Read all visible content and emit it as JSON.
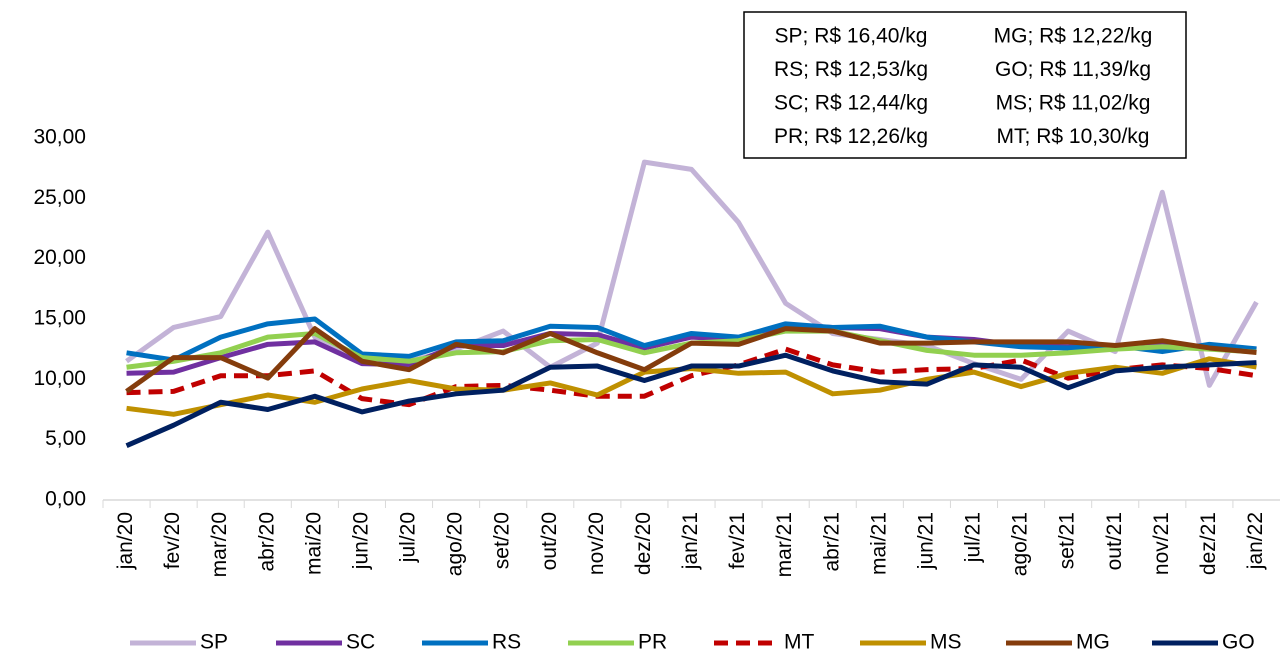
{
  "chart_data": {
    "type": "line",
    "categories": [
      "jan/20",
      "fev/20",
      "mar/20",
      "abr/20",
      "mai/20",
      "jun/20",
      "jul/20",
      "ago/20",
      "set/20",
      "out/20",
      "nov/20",
      "dez/20",
      "jan/21",
      "fev/21",
      "mar/21",
      "abr/21",
      "mai/21",
      "jun/21",
      "jul/21",
      "ago/21",
      "set/21",
      "out/21",
      "nov/21",
      "dez/21",
      "jan/22"
    ],
    "series": [
      {
        "name": "SP",
        "color": "#c3b3d7",
        "values": [
          11.5,
          14.3,
          15.2,
          22.2,
          13.5,
          11.5,
          11.5,
          12.5,
          14.0,
          11.0,
          13.0,
          28.0,
          27.4,
          23.0,
          16.3,
          13.8,
          13.3,
          12.8,
          11.3,
          10.0,
          14.0,
          12.3,
          25.5,
          9.5,
          16.4
        ]
      },
      {
        "name": "SC",
        "color": "#7030a0",
        "values": [
          10.5,
          10.6,
          11.8,
          12.9,
          13.1,
          11.3,
          11.2,
          12.8,
          12.8,
          13.8,
          13.7,
          12.6,
          13.5,
          13.3,
          14.5,
          14.3,
          14.2,
          13.5,
          13.3,
          12.8,
          12.7,
          12.8,
          12.8,
          12.7,
          12.44
        ]
      },
      {
        "name": "RS",
        "color": "#0070c0",
        "values": [
          12.2,
          11.6,
          13.5,
          14.6,
          15.0,
          12.1,
          11.9,
          13.1,
          13.2,
          14.4,
          14.3,
          12.8,
          13.8,
          13.5,
          14.6,
          14.3,
          14.4,
          13.5,
          13.1,
          12.7,
          12.6,
          12.8,
          12.3,
          12.9,
          12.53
        ]
      },
      {
        "name": "PR",
        "color": "#92d050",
        "values": [
          11.0,
          11.5,
          12.2,
          13.5,
          13.8,
          11.8,
          11.5,
          12.2,
          12.3,
          13.2,
          13.3,
          12.2,
          13.0,
          13.2,
          14.0,
          14.0,
          13.2,
          12.4,
          12.0,
          12.0,
          12.2,
          12.5,
          12.7,
          12.5,
          12.26
        ]
      },
      {
        "name": "MT",
        "color": "#c00000",
        "dashed": true,
        "values": [
          8.9,
          9.0,
          10.3,
          10.3,
          10.7,
          8.4,
          7.9,
          9.4,
          9.5,
          9.1,
          8.6,
          8.6,
          10.3,
          11.2,
          12.5,
          11.2,
          10.6,
          10.8,
          10.9,
          11.6,
          10.1,
          10.8,
          11.2,
          10.9,
          10.3
        ]
      },
      {
        "name": "MS",
        "color": "#bf9000",
        "values": [
          7.6,
          7.1,
          7.9,
          8.7,
          8.1,
          9.2,
          9.9,
          9.2,
          9.1,
          9.7,
          8.7,
          10.6,
          10.9,
          10.5,
          10.6,
          8.8,
          9.1,
          10.0,
          10.6,
          9.4,
          10.5,
          11.0,
          10.5,
          11.7,
          11.02
        ]
      },
      {
        "name": "MG",
        "color": "#843c0c",
        "values": [
          9.0,
          11.8,
          11.8,
          10.1,
          14.2,
          11.5,
          10.8,
          12.9,
          12.2,
          13.8,
          12.2,
          10.8,
          13.0,
          12.9,
          14.2,
          14.0,
          13.0,
          13.0,
          13.1,
          13.1,
          13.1,
          12.8,
          13.2,
          12.6,
          12.22
        ]
      },
      {
        "name": "GO",
        "color": "#002060",
        "values": [
          4.5,
          6.2,
          8.1,
          7.5,
          8.6,
          7.3,
          8.2,
          8.8,
          9.1,
          11.0,
          11.1,
          9.9,
          11.1,
          11.1,
          12.0,
          10.7,
          9.8,
          9.6,
          11.2,
          11.0,
          9.3,
          10.7,
          11.0,
          11.2,
          11.39
        ]
      }
    ],
    "ylim": [
      0,
      30
    ],
    "yticks": [
      {
        "value": 0,
        "label": "0,00"
      },
      {
        "value": 5,
        "label": "5,00"
      },
      {
        "value": 10,
        "label": "10,00"
      },
      {
        "value": 15,
        "label": "15,00"
      },
      {
        "value": 20,
        "label": "20,00"
      },
      {
        "value": 25,
        "label": "25,00"
      },
      {
        "value": 30,
        "label": "30,00"
      }
    ],
    "annotations": [
      "SP; R$ 16,40/kg",
      "RS; R$ 12,53/kg",
      "SC; R$ 12,44/kg",
      "PR; R$ 12,26/kg",
      "MG; R$ 12,22/kg",
      "GO; R$ 11,39/kg",
      "MS; R$ 11,02/kg",
      "MT; R$ 10,30/kg"
    ],
    "legend": "bottom"
  }
}
